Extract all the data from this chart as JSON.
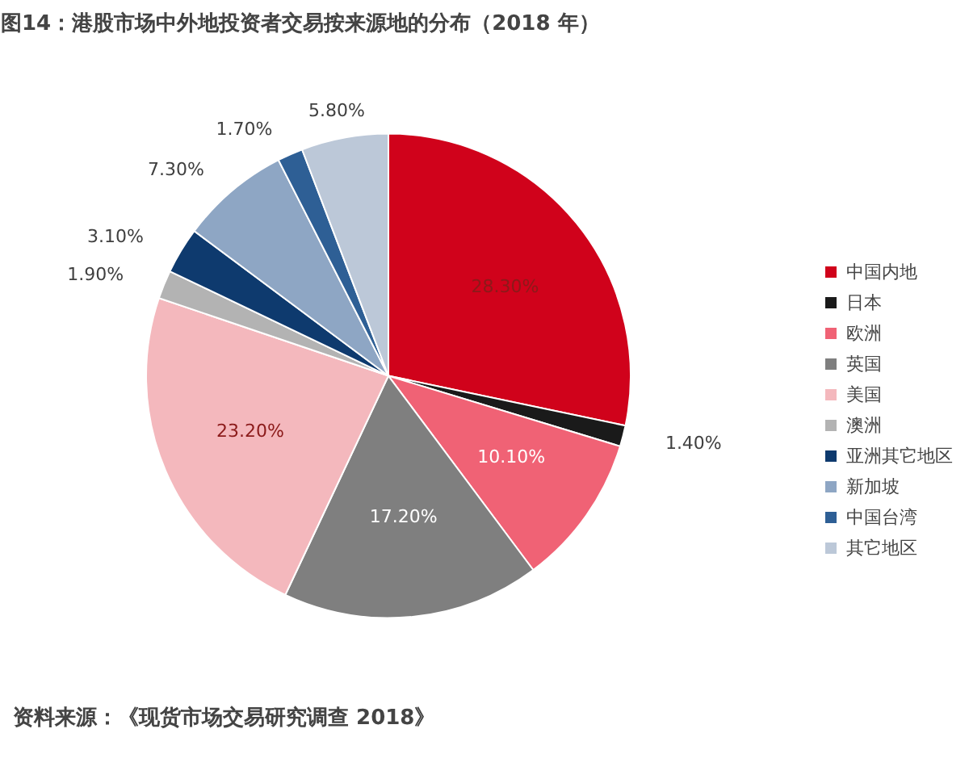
{
  "chart_data": {
    "type": "pie",
    "title": "图14：港股市场中外地投资者交易按来源地的分布（2018 年）",
    "categories": [
      "中国内地",
      "日本",
      "欧洲",
      "英国",
      "美国",
      "澳洲",
      "亚洲其它地区",
      "新加坡",
      "中国台湾",
      "其它地区"
    ],
    "values": [
      28.3,
      1.4,
      10.1,
      17.2,
      23.2,
      1.9,
      3.1,
      7.3,
      1.7,
      5.8
    ],
    "value_labels": [
      "28.30%",
      "1.40%",
      "10.10%",
      "17.20%",
      "23.20%",
      "1.90%",
      "3.10%",
      "7.30%",
      "1.70%",
      "5.80%"
    ],
    "colors": [
      "#d0021b",
      "#1a1a1a",
      "#f06275",
      "#7f7f7f",
      "#f4b8bd",
      "#b3b3b3",
      "#0e3a6e",
      "#8ea6c4",
      "#2e5f95",
      "#bcc8d8"
    ],
    "legend": "right",
    "annotations": [
      "资料来源：《现货市场交易研究调查 2018》"
    ]
  }
}
